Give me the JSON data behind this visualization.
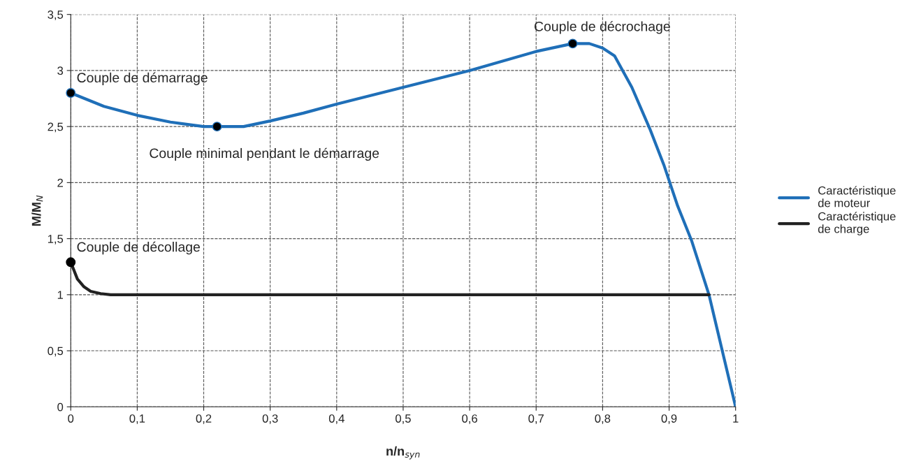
{
  "chart_data": {
    "type": "line",
    "xlabel": "n/n$_{syn}$",
    "ylabel": "M/M$_{N}$",
    "xlim": [
      0,
      1
    ],
    "ylim": [
      0,
      3.5
    ],
    "xticks": [
      0,
      {
        "value": 0.1,
        "label": "0,1"
      },
      {
        "value": 0.2,
        "label": "0,2"
      },
      {
        "value": 0.3,
        "label": "0,3"
      },
      {
        "value": 0.4,
        "label": "0,4"
      },
      {
        "value": 0.5,
        "label": "0,5"
      },
      {
        "value": 0.6,
        "label": "0,6"
      },
      {
        "value": 0.7,
        "label": "0,7"
      },
      {
        "value": 0.8,
        "label": "0,8"
      },
      {
        "value": 0.9,
        "label": "0,9"
      },
      1
    ],
    "yticks": [
      0,
      {
        "value": 0.5,
        "label": "0,5"
      },
      1,
      {
        "value": 1.5,
        "label": "1,5"
      },
      2,
      {
        "value": 2.5,
        "label": "2,5"
      },
      3,
      {
        "value": 3.5,
        "label": "3,5"
      }
    ],
    "grid": true,
    "legend": "right",
    "line_style": "solid",
    "series": [
      {
        "name": "Caractéristique\nde moteur",
        "color": "#1f6fb8",
        "x": [
          0,
          0.05,
          0.1,
          0.15,
          0.2,
          0.22,
          0.26,
          0.3,
          0.35,
          0.4,
          0.5,
          0.6,
          0.7,
          0.755,
          0.78,
          0.8,
          0.818,
          0.844,
          0.871,
          0.892,
          0.913,
          0.934,
          0.96,
          1
        ],
        "values": [
          2.8,
          2.68,
          2.6,
          2.54,
          2.5,
          2.5,
          2.5,
          2.55,
          2.62,
          2.7,
          2.85,
          3.0,
          3.17,
          3.24,
          3.24,
          3.2,
          3.13,
          2.85,
          2.48,
          2.16,
          1.79,
          1.48,
          1.0,
          0
        ]
      },
      {
        "name": "Caractéristique\nde charge",
        "color": "#222222",
        "x": [
          0,
          0.01,
          0.02,
          0.03,
          0.045,
          0.06,
          0.96
        ],
        "values": [
          1.29,
          1.14,
          1.07,
          1.03,
          1.01,
          1.0,
          1.0
        ]
      }
    ],
    "annotations": [
      {
        "text": "Couple de démarrage",
        "x": 0,
        "y": 2.8
      },
      {
        "text": "Couple minimal pendant le démarrage",
        "x": 0.22,
        "y": 2.5
      },
      {
        "text": "Couple de décrochage",
        "x": 0.755,
        "y": 3.24
      },
      {
        "text": "Couple de décollage",
        "x": 0,
        "y": 1.29
      }
    ]
  }
}
